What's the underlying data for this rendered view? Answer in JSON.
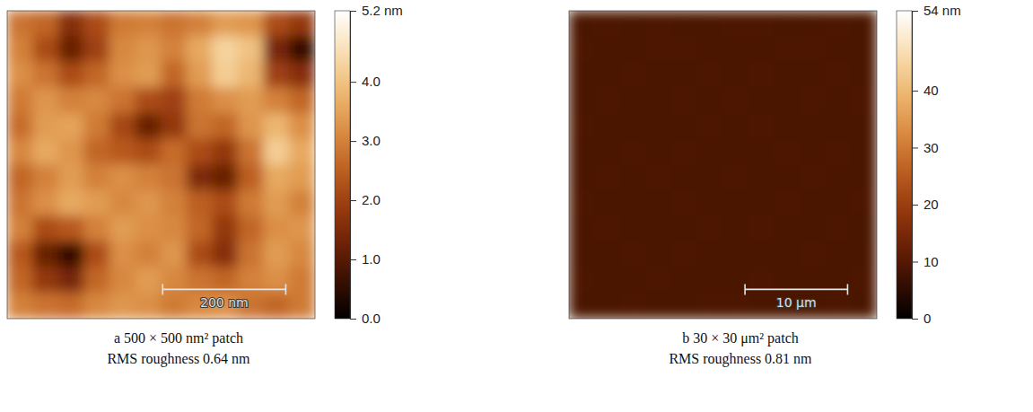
{
  "chart_data": [
    {
      "type": "heatmap",
      "title": "a 500 × 500 nm² patch",
      "subtitle": "RMS roughness 0.64 nm",
      "tick_labels": false,
      "xlim": [
        0,
        500
      ],
      "ylim": [
        0,
        500
      ],
      "scale_bar": {
        "label": "200 nm",
        "length": 200
      },
      "colorbar": {
        "range": [
          0,
          5.2
        ],
        "ticks": [
          {
            "value": 5.2,
            "label": "5.2 nm"
          },
          {
            "value": 4,
            "label": "4.0"
          },
          {
            "value": 3,
            "label": "3.0"
          },
          {
            "value": 2,
            "label": "2.0"
          },
          {
            "value": 1,
            "label": "1.0"
          },
          {
            "value": 0,
            "label": "0.0"
          }
        ]
      },
      "cells": [
        [
          2.8,
          2.6,
          1.6,
          2.2,
          2.9,
          3.0,
          2.8,
          3.0,
          3.4,
          3.3,
          2.2,
          1.8
        ],
        [
          3.0,
          2.2,
          1.2,
          2.0,
          3.1,
          3.3,
          3.0,
          3.6,
          4.3,
          4.0,
          1.4,
          0.6
        ],
        [
          3.2,
          2.8,
          2.2,
          2.6,
          3.2,
          3.4,
          2.6,
          3.4,
          4.2,
          3.8,
          2.0,
          1.6
        ],
        [
          2.9,
          3.3,
          3.0,
          3.1,
          2.8,
          2.2,
          2.0,
          2.9,
          3.2,
          3.4,
          3.0,
          2.6
        ],
        [
          2.7,
          3.4,
          3.5,
          2.9,
          2.1,
          1.2,
          1.8,
          2.8,
          2.6,
          3.3,
          3.8,
          3.2
        ],
        [
          3.1,
          3.6,
          3.3,
          2.6,
          2.4,
          2.2,
          2.7,
          2.2,
          1.8,
          2.8,
          4.2,
          3.6
        ],
        [
          2.6,
          3.0,
          3.4,
          3.0,
          3.2,
          3.0,
          2.8,
          1.5,
          1.2,
          2.5,
          3.6,
          3.4
        ],
        [
          2.8,
          3.2,
          3.6,
          3.4,
          3.1,
          3.3,
          3.0,
          2.5,
          2.2,
          2.9,
          3.4,
          3.0
        ],
        [
          3.0,
          2.2,
          2.4,
          3.0,
          3.4,
          3.2,
          3.1,
          2.6,
          1.8,
          2.6,
          3.2,
          3.3
        ],
        [
          2.4,
          1.2,
          0.6,
          2.2,
          3.2,
          3.0,
          3.3,
          2.2,
          1.6,
          2.8,
          3.4,
          3.1
        ],
        [
          2.6,
          1.8,
          1.4,
          2.6,
          3.1,
          3.4,
          3.1,
          2.8,
          2.6,
          3.0,
          3.2,
          2.9
        ],
        [
          3.0,
          2.8,
          2.7,
          3.1,
          3.3,
          3.2,
          2.9,
          3.1,
          3.2,
          2.8,
          2.6,
          2.9
        ]
      ]
    },
    {
      "type": "heatmap",
      "title": "b 30 × 30 μm² patch",
      "subtitle": "RMS roughness 0.81 nm",
      "tick_labels": false,
      "xlim": [
        0,
        30
      ],
      "ylim": [
        0,
        30
      ],
      "scale_bar": {
        "label": "10 μm",
        "length": 10
      },
      "colorbar": {
        "range": [
          0,
          54
        ],
        "ticks": [
          {
            "value": 54,
            "label": "54 nm"
          },
          40,
          30,
          20,
          10,
          0
        ]
      },
      "cells": [
        [
          9.0,
          9.2,
          8.9,
          9.1,
          9.0,
          8.8,
          9.1,
          9.2,
          9.0,
          8.9,
          9.1,
          9.0
        ],
        [
          9.1,
          8.9,
          9.0,
          9.2,
          9.1,
          9.0,
          8.9,
          9.0,
          9.1,
          9.2,
          9.0,
          8.9
        ],
        [
          8.9,
          9.0,
          9.1,
          9.0,
          8.8,
          9.1,
          9.0,
          9.2,
          8.9,
          9.0,
          9.1,
          9.0
        ],
        [
          9.0,
          9.1,
          8.9,
          9.0,
          9.1,
          9.0,
          9.2,
          8.9,
          9.0,
          9.1,
          8.9,
          9.1
        ],
        [
          9.2,
          9.0,
          9.0,
          8.9,
          9.0,
          9.2,
          9.0,
          9.1,
          9.0,
          8.9,
          9.0,
          9.0
        ],
        [
          9.0,
          8.9,
          9.1,
          9.0,
          9.1,
          8.9,
          9.0,
          9.0,
          9.2,
          9.0,
          9.1,
          8.9
        ],
        [
          8.9,
          9.1,
          9.0,
          9.2,
          9.0,
          9.0,
          9.1,
          8.9,
          9.0,
          9.1,
          9.0,
          9.0
        ],
        [
          9.1,
          9.0,
          8.9,
          9.0,
          9.1,
          9.0,
          8.9,
          9.0,
          9.1,
          9.0,
          8.9,
          9.1
        ],
        [
          9.0,
          9.2,
          9.0,
          8.9,
          9.0,
          9.1,
          9.0,
          9.2,
          8.9,
          9.0,
          9.1,
          8.6
        ],
        [
          8.9,
          9.0,
          9.1,
          9.0,
          9.2,
          9.0,
          8.9,
          9.0,
          9.0,
          9.1,
          9.0,
          9.0
        ],
        [
          9.1,
          8.9,
          9.0,
          9.1,
          9.0,
          8.9,
          9.0,
          9.1,
          9.0,
          8.9,
          9.0,
          9.1
        ],
        [
          9.0,
          9.0,
          9.1,
          8.9,
          9.0,
          9.1,
          9.2,
          9.0,
          8.9,
          9.0,
          9.1,
          9.0
        ]
      ]
    }
  ]
}
